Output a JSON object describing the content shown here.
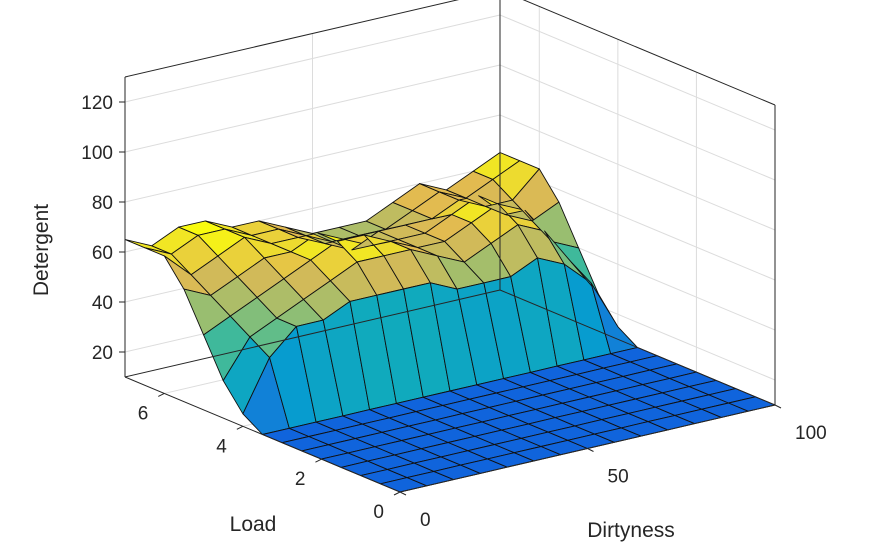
{
  "chart_data": {
    "type": "surface",
    "xlabel": "Dirtyness",
    "ylabel": "Load",
    "zlabel": "Detergent",
    "xlim": [
      0,
      100
    ],
    "ylim": [
      0,
      7
    ],
    "zlim": [
      10,
      130
    ],
    "xticks": [
      "0",
      "50",
      "100"
    ],
    "yticks": [
      "0",
      "2",
      "4",
      "6"
    ],
    "zticks": [
      "20",
      "40",
      "60",
      "80",
      "100",
      "120"
    ],
    "grid": true,
    "colormap": "parula",
    "x": [
      0,
      7.14,
      14.29,
      21.43,
      28.57,
      35.71,
      42.86,
      50,
      57.14,
      64.29,
      71.43,
      78.57,
      85.71,
      92.86,
      100
    ],
    "y": [
      0,
      0.5,
      1,
      1.5,
      2,
      2.5,
      3,
      3.5,
      4,
      4.5,
      5,
      5.5,
      6,
      6.5,
      7
    ],
    "z_note": "rows = Load values (y), columns = Dirtyness values (x)",
    "z": [
      [
        10,
        10,
        10,
        10,
        10,
        10,
        10,
        10,
        10,
        10,
        10,
        10,
        10,
        10,
        10
      ],
      [
        10,
        10,
        10,
        10,
        10,
        10,
        10,
        10,
        10,
        10,
        10,
        10,
        10,
        10,
        10
      ],
      [
        10,
        10,
        10,
        10,
        10,
        10,
        10,
        10,
        10,
        10,
        10,
        10,
        10,
        10,
        10
      ],
      [
        10,
        10,
        10,
        10,
        10,
        10,
        10,
        10,
        10,
        10,
        10,
        10,
        10,
        10,
        10
      ],
      [
        10,
        10,
        10,
        10,
        10,
        10,
        10,
        10,
        10,
        10,
        10,
        10,
        10,
        10,
        10
      ],
      [
        10,
        10,
        10,
        10,
        10,
        10,
        10,
        10,
        10,
        10,
        10,
        10,
        10,
        10,
        10
      ],
      [
        10,
        10,
        10,
        10,
        10,
        10,
        10,
        10,
        10,
        10,
        10,
        10,
        10,
        10,
        10
      ],
      [
        10,
        10,
        10,
        10,
        10,
        10,
        10,
        10,
        10,
        10,
        10,
        10,
        10,
        10,
        10
      ],
      [
        15,
        35,
        45,
        45,
        50,
        50,
        50,
        50,
        45,
        45,
        45,
        50,
        45,
        35,
        15
      ],
      [
        25,
        40,
        45,
        50,
        55,
        60,
        60,
        60,
        55,
        50,
        55,
        60,
        55,
        40,
        25
      ],
      [
        40,
        45,
        50,
        55,
        60,
        65,
        65,
        60,
        55,
        55,
        60,
        65,
        60,
        45,
        40
      ],
      [
        55,
        50,
        55,
        60,
        60,
        65,
        60,
        55,
        55,
        55,
        60,
        65,
        55,
        50,
        55
      ],
      [
        65,
        55,
        60,
        65,
        60,
        60,
        55,
        50,
        55,
        55,
        55,
        60,
        55,
        55,
        65
      ],
      [
        65,
        60,
        65,
        65,
        60,
        60,
        55,
        50,
        50,
        50,
        55,
        60,
        55,
        60,
        65
      ],
      [
        65,
        60,
        65,
        65,
        60,
        60,
        55,
        50,
        50,
        50,
        55,
        60,
        55,
        60,
        65
      ]
    ]
  }
}
